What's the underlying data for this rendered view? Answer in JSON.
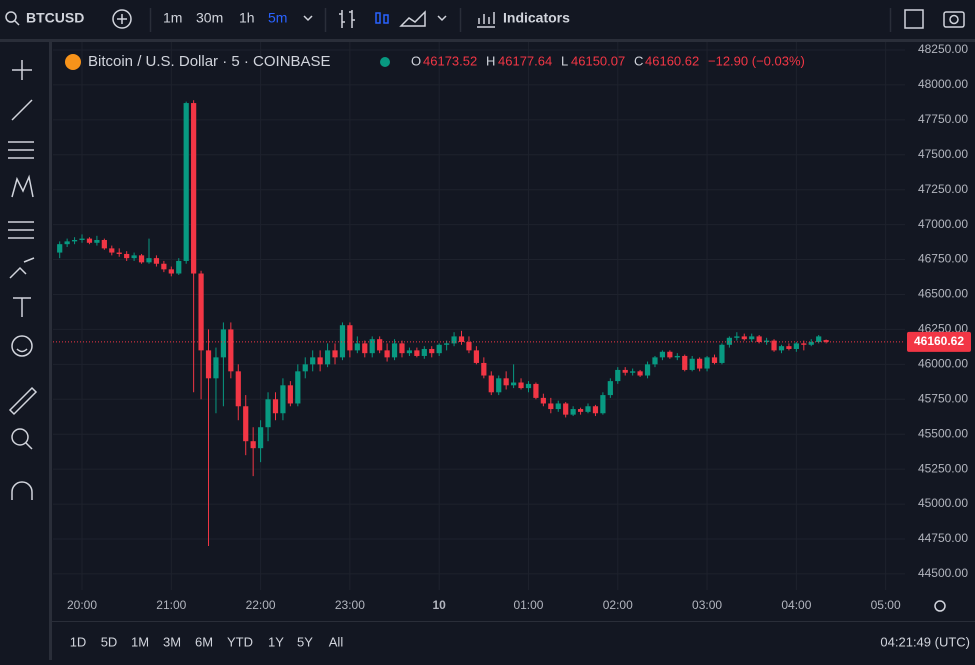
{
  "toolbar": {
    "symbol": "BTCUSD",
    "intervals": [
      "1m",
      "30m",
      "1h",
      "5m"
    ],
    "indicators": "Indicators"
  },
  "chart": {
    "type": "candlestick",
    "title": "Bitcoin / U.S. Dollar · 5 · COINBASE",
    "ohlc": [
      {
        "label": "O",
        "value": 46173.52
      },
      {
        "label": "H",
        "value": 46177.64
      },
      {
        "label": "L",
        "value": 46150.07
      },
      {
        "label": "C",
        "value": 46160.62
      }
    ],
    "change": "−12.90 (−0.03%)",
    "up_color": "#089981",
    "down_color": "#f23645",
    "ylim": [
      44385,
      48307
    ],
    "yticks": [
      {
        "value": 44500,
        "label": "44500.00"
      },
      {
        "value": 44750,
        "label": "44750.00"
      },
      {
        "value": 45000,
        "label": "45000.00"
      },
      {
        "value": 45250,
        "label": "45250.00"
      },
      {
        "value": 45500,
        "label": "45500.00"
      },
      {
        "value": 45750,
        "label": "45750.00"
      },
      {
        "value": 46000,
        "label": "46000.00"
      },
      {
        "value": 46250,
        "label": "46250.00"
      },
      {
        "value": 46500,
        "label": "46500.00"
      },
      {
        "value": 46750,
        "label": "46750.00"
      },
      {
        "value": 47000,
        "label": "47000.00"
      },
      {
        "value": 47250,
        "label": "47250.00"
      },
      {
        "value": 47500,
        "label": "47500.00"
      },
      {
        "value": 47750,
        "label": "47750.00"
      },
      {
        "value": 48000,
        "label": "48000.00"
      },
      {
        "value": 48250,
        "label": "48250.00"
      }
    ],
    "xlim": [
      -0.9,
      113.6
    ],
    "xticks": [
      {
        "value": 3,
        "label": "20:00"
      },
      {
        "value": 15,
        "label": "21:00"
      },
      {
        "value": 27,
        "label": "22:00"
      },
      {
        "value": 39,
        "label": "23:00"
      },
      {
        "value": 51,
        "label": "10"
      },
      {
        "value": 63,
        "label": "01:00"
      },
      {
        "value": 75,
        "label": "02:00"
      },
      {
        "value": 87,
        "label": "03:00"
      },
      {
        "value": 99,
        "label": "04:00"
      },
      {
        "value": 111,
        "label": "05:00"
      }
    ],
    "grid": true,
    "candles": [
      [
        46800,
        46880,
        46760,
        46860
      ],
      [
        46860,
        46900,
        46840,
        46880
      ],
      [
        46880,
        46910,
        46860,
        46890
      ],
      [
        46890,
        46930,
        46870,
        46900
      ],
      [
        46900,
        46910,
        46860,
        46870
      ],
      [
        46870,
        46920,
        46850,
        46890
      ],
      [
        46890,
        46900,
        46820,
        46830
      ],
      [
        46830,
        46850,
        46780,
        46800
      ],
      [
        46800,
        46830,
        46770,
        46790
      ],
      [
        46790,
        46810,
        46740,
        46760
      ],
      [
        46760,
        46800,
        46740,
        46780
      ],
      [
        46780,
        46790,
        46720,
        46730
      ],
      [
        46730,
        46900,
        46720,
        46760
      ],
      [
        46760,
        46780,
        46700,
        46720
      ],
      [
        46720,
        46740,
        46660,
        46680
      ],
      [
        46680,
        46700,
        46630,
        46650
      ],
      [
        46650,
        46760,
        46640,
        46740
      ],
      [
        46740,
        47880,
        46720,
        47870
      ],
      [
        47870,
        47890,
        45800,
        46650
      ],
      [
        46650,
        46670,
        45750,
        46100
      ],
      [
        46100,
        46250,
        44700,
        45900
      ],
      [
        45900,
        46120,
        45650,
        46050
      ],
      [
        46050,
        46300,
        45700,
        46250
      ],
      [
        46250,
        46300,
        45900,
        45950
      ],
      [
        45950,
        46000,
        45600,
        45700
      ],
      [
        45700,
        45780,
        45350,
        45450
      ],
      [
        45450,
        45550,
        45200,
        45400
      ],
      [
        45400,
        45600,
        45300,
        45550
      ],
      [
        45550,
        45800,
        45450,
        45750
      ],
      [
        45750,
        45800,
        45600,
        45650
      ],
      [
        45650,
        45900,
        45600,
        45850
      ],
      [
        45850,
        45880,
        45700,
        45720
      ],
      [
        45720,
        46000,
        45700,
        45950
      ],
      [
        45950,
        46050,
        45900,
        46000
      ],
      [
        46000,
        46100,
        45950,
        46050
      ],
      [
        46050,
        46100,
        45950,
        46000
      ],
      [
        46000,
        46150,
        45980,
        46100
      ],
      [
        46100,
        46150,
        46000,
        46050
      ],
      [
        46050,
        46300,
        46030,
        46280
      ],
      [
        46280,
        46300,
        46050,
        46100
      ],
      [
        46100,
        46200,
        46080,
        46150
      ],
      [
        46150,
        46170,
        46050,
        46080
      ],
      [
        46080,
        46200,
        46050,
        46180
      ],
      [
        46180,
        46200,
        46080,
        46100
      ],
      [
        46100,
        46150,
        46020,
        46050
      ],
      [
        46050,
        46180,
        46030,
        46150
      ],
      [
        46150,
        46170,
        46050,
        46080
      ],
      [
        46080,
        46120,
        46060,
        46100
      ],
      [
        46100,
        46120,
        46050,
        46060
      ],
      [
        46060,
        46130,
        46040,
        46110
      ],
      [
        46110,
        46130,
        46050,
        46080
      ],
      [
        46080,
        46150,
        46060,
        46140
      ],
      [
        46140,
        46170,
        46100,
        46150
      ],
      [
        46150,
        46230,
        46130,
        46200
      ],
      [
        46200,
        46240,
        46140,
        46160
      ],
      [
        46160,
        46200,
        46080,
        46100
      ],
      [
        46100,
        46130,
        46000,
        46010
      ],
      [
        46010,
        46050,
        45900,
        45920
      ],
      [
        45920,
        45950,
        45780,
        45800
      ],
      [
        45800,
        45920,
        45780,
        45900
      ],
      [
        45900,
        45950,
        45820,
        45850
      ],
      [
        45850,
        46000,
        45830,
        45870
      ],
      [
        45870,
        45900,
        45820,
        45830
      ],
      [
        45830,
        45880,
        45800,
        45860
      ],
      [
        45860,
        45870,
        45750,
        45760
      ],
      [
        45760,
        45790,
        45700,
        45720
      ],
      [
        45720,
        45760,
        45650,
        45680
      ],
      [
        45680,
        45740,
        45660,
        45720
      ],
      [
        45720,
        45730,
        45620,
        45640
      ],
      [
        45640,
        45700,
        45630,
        45680
      ],
      [
        45680,
        45690,
        45640,
        45660
      ],
      [
        45660,
        45720,
        45650,
        45700
      ],
      [
        45700,
        45710,
        45630,
        45650
      ],
      [
        45650,
        45800,
        45640,
        45780
      ],
      [
        45780,
        45900,
        45760,
        45880
      ],
      [
        45880,
        45980,
        45860,
        45960
      ],
      [
        45960,
        45980,
        45920,
        45940
      ],
      [
        45940,
        45970,
        45920,
        45950
      ],
      [
        45950,
        45960,
        45910,
        45920
      ],
      [
        45920,
        46020,
        45900,
        46000
      ],
      [
        46000,
        46060,
        45980,
        46050
      ],
      [
        46050,
        46100,
        46030,
        46090
      ],
      [
        46090,
        46100,
        46040,
        46050
      ],
      [
        46050,
        46080,
        46030,
        46060
      ],
      [
        46060,
        46070,
        45950,
        45960
      ],
      [
        45960,
        46060,
        45950,
        46040
      ],
      [
        46040,
        46050,
        45950,
        45970
      ],
      [
        45970,
        46060,
        45950,
        46050
      ],
      [
        46050,
        46070,
        46000,
        46010
      ],
      [
        46010,
        46150,
        46000,
        46140
      ],
      [
        46140,
        46200,
        46120,
        46190
      ],
      [
        46190,
        46230,
        46170,
        46200
      ],
      [
        46200,
        46220,
        46170,
        46180
      ],
      [
        46180,
        46220,
        46160,
        46200
      ],
      [
        46200,
        46210,
        46150,
        46160
      ],
      [
        46160,
        46190,
        46140,
        46170
      ],
      [
        46170,
        46180,
        46090,
        46100
      ],
      [
        46100,
        46140,
        46080,
        46130
      ],
      [
        46130,
        46150,
        46100,
        46110
      ],
      [
        46110,
        46160,
        46090,
        46150
      ],
      [
        46150,
        46170,
        46100,
        46140
      ],
      [
        46140,
        46180,
        46130,
        46160
      ],
      [
        46160,
        46210,
        46150,
        46200
      ],
      [
        46173.52,
        46177.64,
        46150.07,
        46160.62
      ]
    ]
  },
  "bottom_bar": {
    "ranges": [
      "1D",
      "5D",
      "1M",
      "3M",
      "6M",
      "YTD",
      "1Y",
      "5Y",
      "All"
    ],
    "clock": "04:21:49 (UTC)"
  }
}
